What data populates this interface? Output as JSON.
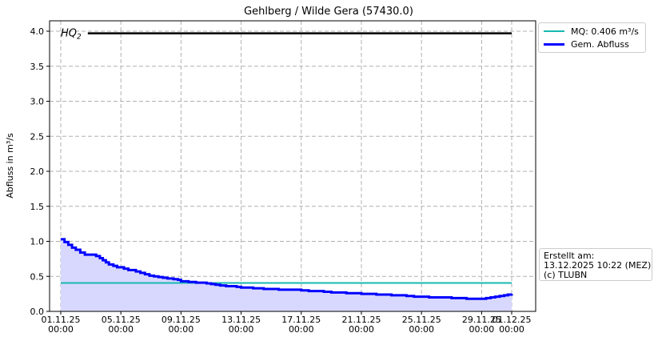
{
  "chart_data": {
    "type": "line",
    "title": "Gehlberg / Wilde Gera (57430.0)",
    "ylabel": "Abfluss in m³/s",
    "xlabel": "",
    "ylim": [
      0.0,
      4.15
    ],
    "y_ticks": [
      "0.0",
      "0.5",
      "1.0",
      "1.5",
      "2.0",
      "2.5",
      "3.0",
      "3.5",
      "4.0"
    ],
    "x_range_days": [
      0,
      30
    ],
    "x_ticks": [
      {
        "day": 0,
        "date": "01.11.25",
        "time": "00:00"
      },
      {
        "day": 4,
        "date": "05.11.25",
        "time": "00:00"
      },
      {
        "day": 8,
        "date": "09.11.25",
        "time": "00:00"
      },
      {
        "day": 12,
        "date": "13.11.25",
        "time": "00:00"
      },
      {
        "day": 16,
        "date": "17.11.25",
        "time": "00:00"
      },
      {
        "day": 20,
        "date": "21.11.25",
        "time": "00:00"
      },
      {
        "day": 24,
        "date": "25.11.25",
        "time": "00:00"
      },
      {
        "day": 28,
        "date": "29.11.25",
        "time": "00:00"
      },
      {
        "day": 30,
        "date": "01.12.25",
        "time": "00:00"
      }
    ],
    "grid": true,
    "legend_position": "outside-top-right",
    "hq2": {
      "label": "HQ",
      "subscript": "2",
      "value": 3.97,
      "x_start_day": 1.8,
      "x_end_day": 30,
      "color": "#000000"
    },
    "mq": {
      "label": "MQ: 0.406 m³/s",
      "value": 0.406,
      "color": "#17b8b0"
    },
    "series": [
      {
        "name": "Gem. Abfluss",
        "color": "#0000ff",
        "fill_color": "#d8d8ff",
        "points": [
          [
            0.0,
            1.03
          ],
          [
            0.25,
            0.99
          ],
          [
            0.5,
            0.95
          ],
          [
            0.75,
            0.91
          ],
          [
            1.0,
            0.88
          ],
          [
            1.3,
            0.84
          ],
          [
            1.6,
            0.81
          ],
          [
            2.0,
            0.81
          ],
          [
            2.35,
            0.79
          ],
          [
            2.6,
            0.76
          ],
          [
            2.8,
            0.73
          ],
          [
            3.0,
            0.7
          ],
          [
            3.2,
            0.67
          ],
          [
            3.5,
            0.65
          ],
          [
            3.75,
            0.63
          ],
          [
            4.0,
            0.63
          ],
          [
            4.2,
            0.61
          ],
          [
            4.5,
            0.59
          ],
          [
            4.8,
            0.59
          ],
          [
            5.0,
            0.57
          ],
          [
            5.3,
            0.55
          ],
          [
            5.6,
            0.53
          ],
          [
            5.9,
            0.51
          ],
          [
            6.2,
            0.5
          ],
          [
            6.5,
            0.49
          ],
          [
            6.8,
            0.48
          ],
          [
            7.1,
            0.47
          ],
          [
            7.5,
            0.46
          ],
          [
            7.8,
            0.45
          ],
          [
            8.0,
            0.43
          ],
          [
            8.3,
            0.43
          ],
          [
            8.5,
            0.42
          ],
          [
            8.9,
            0.42
          ],
          [
            9.0,
            0.41
          ],
          [
            9.5,
            0.41
          ],
          [
            9.7,
            0.4
          ],
          [
            10.0,
            0.39
          ],
          [
            10.3,
            0.38
          ],
          [
            10.6,
            0.37
          ],
          [
            11.0,
            0.36
          ],
          [
            11.4,
            0.36
          ],
          [
            11.7,
            0.35
          ],
          [
            12.0,
            0.34
          ],
          [
            12.5,
            0.34
          ],
          [
            12.8,
            0.33
          ],
          [
            13.2,
            0.33
          ],
          [
            13.5,
            0.32
          ],
          [
            14.0,
            0.32
          ],
          [
            14.5,
            0.31
          ],
          [
            15.0,
            0.31
          ],
          [
            15.5,
            0.31
          ],
          [
            16.0,
            0.3
          ],
          [
            16.5,
            0.29
          ],
          [
            17.0,
            0.29
          ],
          [
            17.5,
            0.28
          ],
          [
            18.0,
            0.27
          ],
          [
            18.5,
            0.27
          ],
          [
            19.0,
            0.26
          ],
          [
            19.5,
            0.26
          ],
          [
            20.0,
            0.25
          ],
          [
            20.5,
            0.25
          ],
          [
            21.0,
            0.24
          ],
          [
            21.5,
            0.24
          ],
          [
            22.0,
            0.23
          ],
          [
            22.5,
            0.23
          ],
          [
            23.0,
            0.22
          ],
          [
            23.5,
            0.21
          ],
          [
            24.0,
            0.21
          ],
          [
            24.5,
            0.2
          ],
          [
            25.0,
            0.2
          ],
          [
            25.5,
            0.2
          ],
          [
            26.0,
            0.19
          ],
          [
            26.5,
            0.19
          ],
          [
            27.0,
            0.18
          ],
          [
            27.5,
            0.18
          ],
          [
            28.0,
            0.18
          ],
          [
            28.3,
            0.19
          ],
          [
            28.6,
            0.2
          ],
          [
            28.9,
            0.21
          ],
          [
            29.2,
            0.22
          ],
          [
            29.5,
            0.23
          ],
          [
            29.75,
            0.24
          ],
          [
            30.0,
            0.25
          ]
        ]
      }
    ],
    "created_label": "Erstellt am:",
    "created_value": "13.12.2025 10:22 (MEZ)",
    "copyright": "(c) TLUBN"
  }
}
